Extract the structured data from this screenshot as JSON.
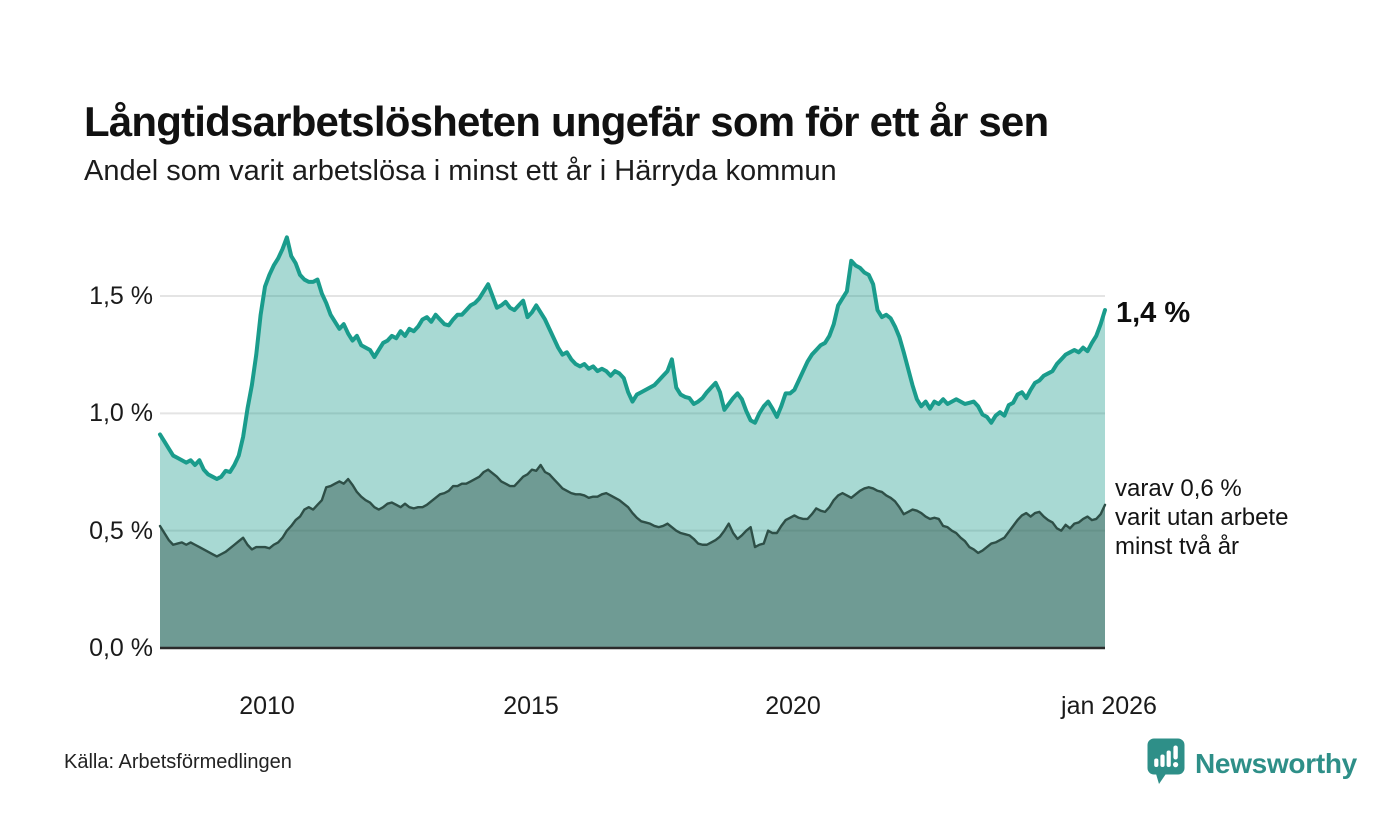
{
  "header": {
    "title": "Långtidsarbetslösheten ungefär som för ett år sen",
    "subtitle": "Andel som varit arbetslösa i minst ett år i Härryda kommun"
  },
  "annotations": {
    "end_value_total": "1,4 %",
    "two_year_lines": [
      "varav 0,6 %",
      "varit utan arbete",
      "minst två år"
    ]
  },
  "y_axis": {
    "ticks": [
      "1,5 %",
      "1,0 %",
      "0,5 %",
      "0,0 %"
    ]
  },
  "x_axis": {
    "ticks": [
      "2010",
      "2015",
      "2020",
      "jan 2026"
    ]
  },
  "footer": {
    "source": "Källa: Arbetsförmedlingen",
    "brand_name": "Newsworthy"
  },
  "colors": {
    "line_one_year": "#1a9c8c",
    "fill_one_year": "rgba(26,155,140,0.38)",
    "line_two_year": "#2e4f47",
    "fill_two_year": "rgba(43,80,71,0.45)",
    "gridline": "#e4e4e4",
    "baseline": "#2b2b2b",
    "brand_teal": "#2e8f88"
  },
  "chart_data": {
    "type": "area",
    "title": "Långtidsarbetslösheten ungefär som för ett år sen",
    "subtitle": "Andel som varit arbetslösa i minst ett år i Härryda kommun",
    "unit": "%",
    "frequency": "monthly",
    "x_start": "2008-01",
    "x_end": "2026-01",
    "ylim": [
      0,
      1.75
    ],
    "grid_values": [
      0.5,
      1.0,
      1.5
    ],
    "legend_position": "none",
    "series": [
      {
        "name": "Andel arbetslösa minst ett år",
        "end_value": 1.4,
        "values": [
          0.91,
          0.88,
          0.85,
          0.82,
          0.81,
          0.8,
          0.79,
          0.8,
          0.78,
          0.8,
          0.76,
          0.74,
          0.73,
          0.72,
          0.73,
          0.755,
          0.75,
          0.78,
          0.82,
          0.9,
          1.02,
          1.12,
          1.25,
          1.42,
          1.54,
          1.59,
          1.63,
          1.66,
          1.7,
          1.75,
          1.67,
          1.64,
          1.59,
          1.57,
          1.56,
          1.56,
          1.57,
          1.51,
          1.47,
          1.42,
          1.39,
          1.36,
          1.38,
          1.34,
          1.31,
          1.33,
          1.29,
          1.28,
          1.27,
          1.24,
          1.27,
          1.3,
          1.31,
          1.33,
          1.32,
          1.35,
          1.33,
          1.36,
          1.35,
          1.37,
          1.4,
          1.41,
          1.39,
          1.42,
          1.4,
          1.38,
          1.375,
          1.4,
          1.42,
          1.42,
          1.44,
          1.46,
          1.47,
          1.49,
          1.52,
          1.55,
          1.5,
          1.45,
          1.46,
          1.475,
          1.45,
          1.44,
          1.46,
          1.48,
          1.41,
          1.43,
          1.46,
          1.43,
          1.4,
          1.36,
          1.32,
          1.28,
          1.25,
          1.26,
          1.23,
          1.21,
          1.2,
          1.21,
          1.19,
          1.2,
          1.18,
          1.19,
          1.18,
          1.16,
          1.18,
          1.17,
          1.15,
          1.09,
          1.05,
          1.08,
          1.09,
          1.1,
          1.11,
          1.12,
          1.14,
          1.16,
          1.18,
          1.23,
          1.11,
          1.08,
          1.07,
          1.065,
          1.04,
          1.05,
          1.065,
          1.09,
          1.11,
          1.13,
          1.09,
          1.015,
          1.04,
          1.065,
          1.085,
          1.06,
          1.01,
          0.97,
          0.96,
          1.0,
          1.03,
          1.05,
          1.02,
          0.985,
          1.03,
          1.085,
          1.085,
          1.1,
          1.14,
          1.18,
          1.22,
          1.25,
          1.27,
          1.29,
          1.3,
          1.33,
          1.38,
          1.46,
          1.49,
          1.52,
          1.65,
          1.63,
          1.62,
          1.6,
          1.59,
          1.55,
          1.44,
          1.41,
          1.42,
          1.405,
          1.37,
          1.325,
          1.26,
          1.19,
          1.12,
          1.06,
          1.03,
          1.05,
          1.02,
          1.05,
          1.04,
          1.06,
          1.04,
          1.05,
          1.06,
          1.05,
          1.04,
          1.045,
          1.05,
          1.03,
          0.995,
          0.985,
          0.96,
          0.99,
          1.005,
          0.99,
          1.035,
          1.045,
          1.08,
          1.09,
          1.065,
          1.1,
          1.13,
          1.14,
          1.16,
          1.17,
          1.18,
          1.21,
          1.23,
          1.25,
          1.26,
          1.27,
          1.26,
          1.28,
          1.265,
          1.3,
          1.33,
          1.38,
          1.44
        ]
      },
      {
        "name": "Andel arbetslösa minst två år",
        "end_value": 0.6,
        "values": [
          0.52,
          0.49,
          0.46,
          0.44,
          0.445,
          0.45,
          0.44,
          0.45,
          0.44,
          0.43,
          0.42,
          0.41,
          0.4,
          0.39,
          0.4,
          0.41,
          0.425,
          0.44,
          0.455,
          0.47,
          0.44,
          0.42,
          0.43,
          0.43,
          0.43,
          0.425,
          0.44,
          0.45,
          0.47,
          0.5,
          0.52,
          0.545,
          0.56,
          0.59,
          0.6,
          0.59,
          0.61,
          0.63,
          0.685,
          0.69,
          0.7,
          0.71,
          0.7,
          0.72,
          0.695,
          0.665,
          0.645,
          0.63,
          0.62,
          0.6,
          0.59,
          0.6,
          0.615,
          0.62,
          0.61,
          0.6,
          0.615,
          0.6,
          0.595,
          0.6,
          0.6,
          0.61,
          0.625,
          0.64,
          0.655,
          0.66,
          0.67,
          0.69,
          0.69,
          0.7,
          0.7,
          0.71,
          0.72,
          0.73,
          0.75,
          0.76,
          0.745,
          0.73,
          0.71,
          0.7,
          0.69,
          0.69,
          0.71,
          0.73,
          0.74,
          0.76,
          0.755,
          0.78,
          0.75,
          0.74,
          0.72,
          0.7,
          0.68,
          0.67,
          0.66,
          0.655,
          0.655,
          0.65,
          0.64,
          0.645,
          0.645,
          0.655,
          0.66,
          0.65,
          0.64,
          0.63,
          0.615,
          0.6,
          0.575,
          0.555,
          0.54,
          0.535,
          0.53,
          0.52,
          0.515,
          0.52,
          0.53,
          0.515,
          0.5,
          0.49,
          0.485,
          0.48,
          0.465,
          0.445,
          0.44,
          0.44,
          0.45,
          0.46,
          0.475,
          0.5,
          0.53,
          0.49,
          0.465,
          0.48,
          0.5,
          0.515,
          0.43,
          0.44,
          0.445,
          0.5,
          0.49,
          0.49,
          0.52,
          0.545,
          0.555,
          0.565,
          0.555,
          0.55,
          0.55,
          0.57,
          0.595,
          0.585,
          0.58,
          0.6,
          0.63,
          0.65,
          0.66,
          0.65,
          0.64,
          0.655,
          0.67,
          0.68,
          0.685,
          0.68,
          0.67,
          0.665,
          0.65,
          0.64,
          0.625,
          0.6,
          0.57,
          0.58,
          0.59,
          0.585,
          0.575,
          0.56,
          0.55,
          0.555,
          0.55,
          0.52,
          0.515,
          0.5,
          0.49,
          0.47,
          0.455,
          0.43,
          0.42,
          0.405,
          0.415,
          0.43,
          0.445,
          0.45,
          0.46,
          0.47,
          0.495,
          0.52,
          0.545,
          0.565,
          0.575,
          0.56,
          0.575,
          0.58,
          0.56,
          0.545,
          0.535,
          0.51,
          0.5,
          0.525,
          0.51,
          0.53,
          0.535,
          0.55,
          0.56,
          0.545,
          0.55,
          0.57,
          0.61
        ]
      }
    ]
  }
}
